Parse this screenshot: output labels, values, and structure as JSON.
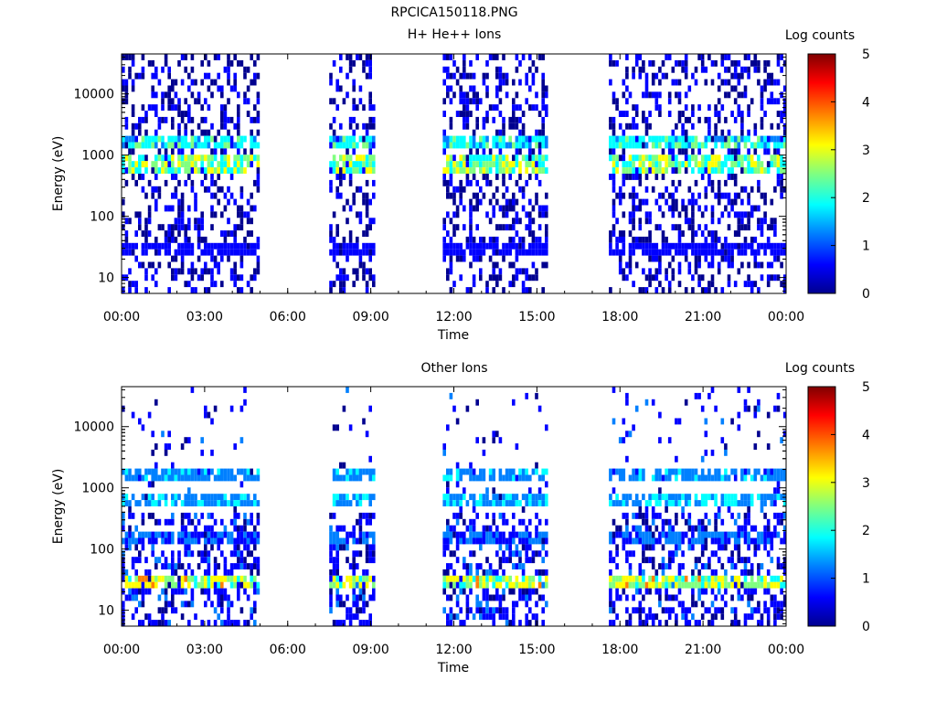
{
  "figure_title": "RPCICA150118.PNG",
  "colors": {
    "axis": "#000000",
    "background": "#ffffff"
  },
  "colorscale": [
    "#00008f",
    "#0000ff",
    "#0080ff",
    "#00ffff",
    "#80ff80",
    "#ffff00",
    "#ff8000",
    "#ff0000",
    "#800000"
  ],
  "chart_data": [
    {
      "type": "heatmap",
      "title": "H+ He++ Ions",
      "xlabel": "Time",
      "ylabel": "Energy (eV)",
      "xticks": [
        "00:00",
        "03:00",
        "06:00",
        "09:00",
        "12:00",
        "15:00",
        "18:00",
        "21:00",
        "00:00"
      ],
      "xlim_hours": [
        0,
        24
      ],
      "yscale": "log",
      "ylim": [
        5.5,
        45000
      ],
      "yticks": [
        "10",
        "100",
        "1000",
        "10000"
      ],
      "colorbar": {
        "label": "Log counts",
        "range": [
          0,
          5
        ],
        "ticks": [
          "0",
          "1",
          "2",
          "3",
          "4",
          "5"
        ]
      },
      "data_intervals_hours": [
        [
          0,
          4.9
        ],
        [
          7.5,
          9.15
        ],
        [
          11.6,
          15.4
        ],
        [
          17.6,
          24
        ]
      ],
      "bands": [
        {
          "energy_eV": 700,
          "level": 2.4
        },
        {
          "energy_eV": 1700,
          "level": 1.9
        },
        {
          "energy_eV": 30,
          "level": 0.6
        }
      ]
    },
    {
      "type": "heatmap",
      "title": "Other Ions",
      "xlabel": "Time",
      "ylabel": "Energy (eV)",
      "xticks": [
        "00:00",
        "03:00",
        "06:00",
        "09:00",
        "12:00",
        "15:00",
        "18:00",
        "21:00",
        "00:00"
      ],
      "xlim_hours": [
        0,
        24
      ],
      "yscale": "log",
      "ylim": [
        5.5,
        45000
      ],
      "yticks": [
        "10",
        "100",
        "1000",
        "10000"
      ],
      "colorbar": {
        "label": "Log counts",
        "range": [
          0,
          5
        ],
        "ticks": [
          "0",
          "1",
          "2",
          "3",
          "4",
          "5"
        ]
      },
      "data_intervals_hours": [
        [
          0,
          4.9
        ],
        [
          7.5,
          9.15
        ],
        [
          11.6,
          15.4
        ],
        [
          17.6,
          24
        ]
      ],
      "bands": [
        {
          "energy_eV": 30,
          "level": 2.7
        },
        {
          "energy_eV": 650,
          "level": 1.5
        },
        {
          "energy_eV": 1700,
          "level": 1.3
        },
        {
          "energy_eV": 150,
          "level": 1.0
        }
      ]
    }
  ]
}
